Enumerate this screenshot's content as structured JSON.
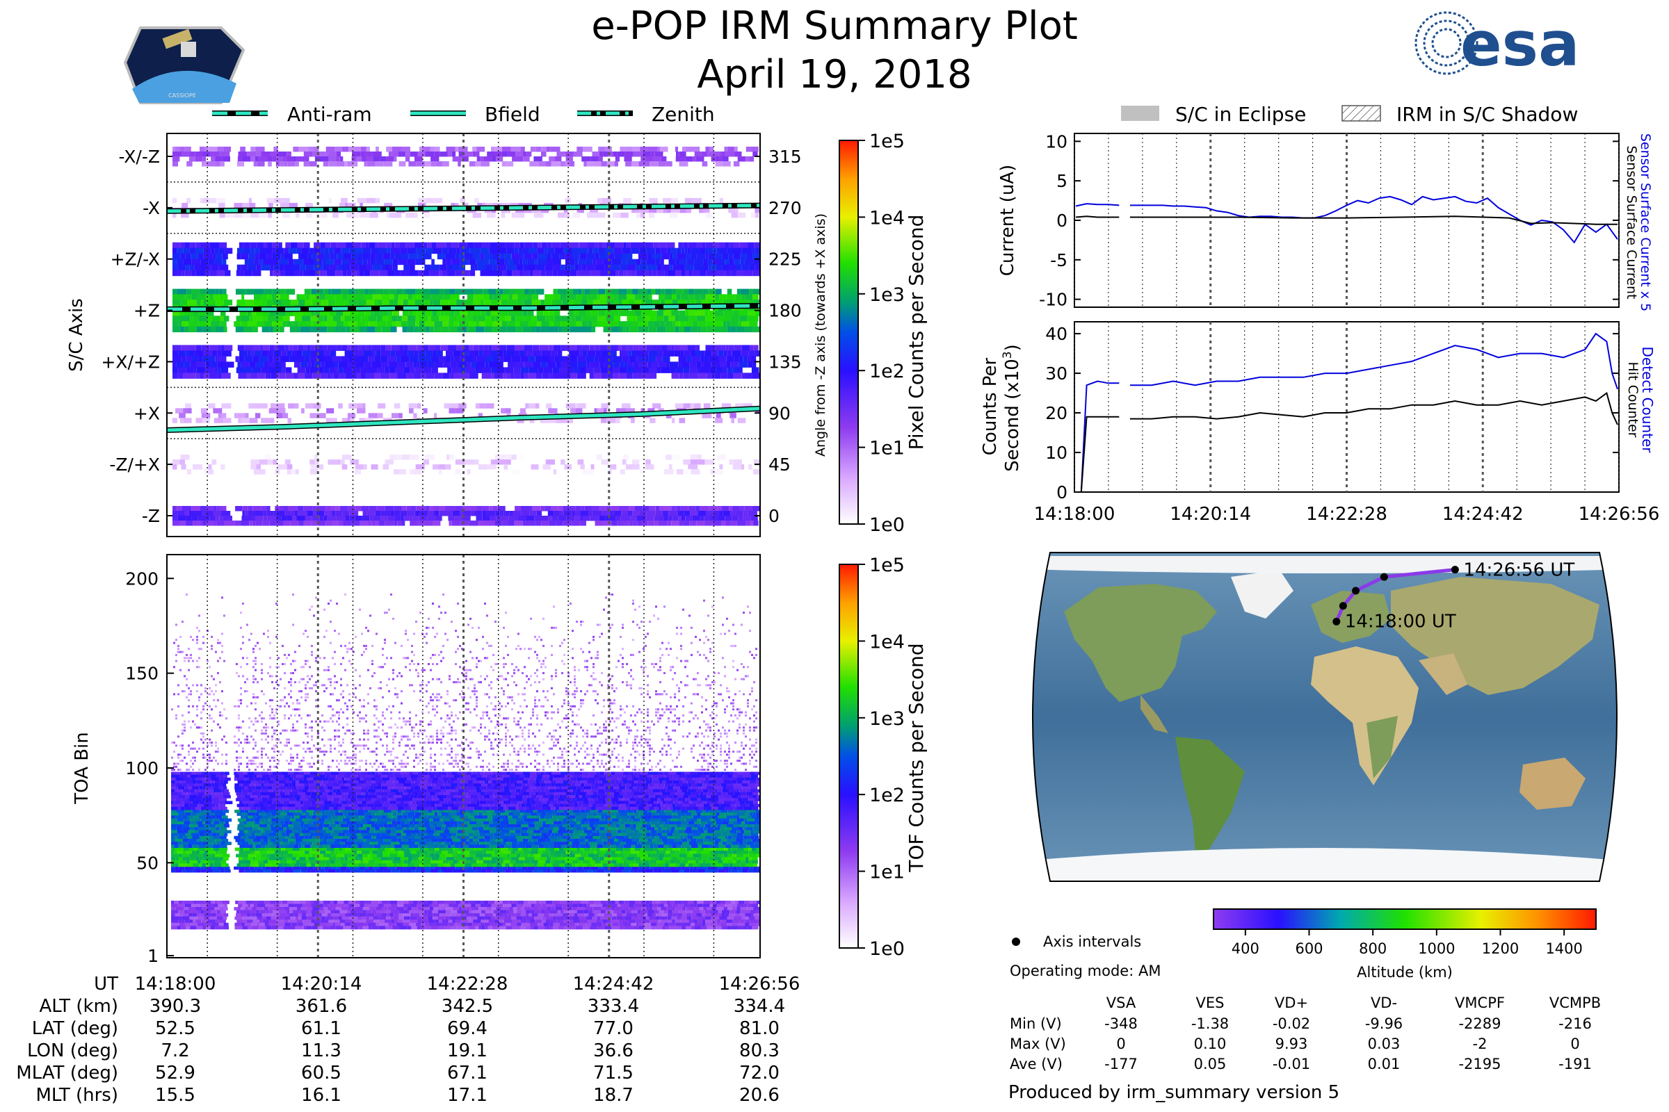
{
  "header": {
    "title": "e-POP IRM Summary Plot",
    "date": "April 19, 2018",
    "logo_left_text": "CASSIOPE",
    "logo_right_text": "esa"
  },
  "legend_top_left": [
    "Anti-ram",
    "Bfield",
    "Zenith"
  ],
  "legend_top_right": [
    "S/C in Eclipse",
    "IRM in S/C Shadow"
  ],
  "colors": {
    "accent_teal": "#2ee6c0",
    "series_blue": "#0000dd",
    "series_black": "#000000",
    "track_purple": "#8a3ae8"
  },
  "chart_data": [
    {
      "id": "axis_heatmap",
      "type": "heatmap",
      "ylabel": "S/C Axis",
      "y2label": "Angle from -Z axis (towards +X axis)",
      "y_categories": [
        "-X/-Z",
        "-X",
        "+Z/-X",
        "+Z",
        "+X/+Z",
        "+X",
        "-Z/+X",
        "-Z"
      ],
      "y2_ticks": [
        315,
        270,
        225,
        180,
        135,
        90,
        45,
        0
      ],
      "bands": [
        {
          "angle": 315,
          "level": 1.2
        },
        {
          "angle": 270,
          "level": 0.6
        },
        {
          "angle": 225,
          "level": 2.1
        },
        {
          "angle": 180,
          "level": 3.3
        },
        {
          "angle": 135,
          "level": 2.0
        },
        {
          "angle": 90,
          "level": 0.8
        },
        {
          "angle": 45,
          "level": 0.4
        },
        {
          "angle": 0,
          "level": 1.7
        }
      ],
      "lines": [
        {
          "name": "Zenith",
          "style": "dashdot",
          "angles": [
            267,
            268,
            269,
            270,
            271,
            272
          ]
        },
        {
          "name": "Anti-ram",
          "style": "dashed",
          "angles": [
            181,
            181,
            182,
            182,
            183,
            184
          ]
        },
        {
          "name": "Bfield",
          "style": "solid",
          "angles": [
            75,
            78,
            82,
            86,
            89,
            94
          ]
        }
      ],
      "colorbar": {
        "label": "Pixel Counts per Second",
        "ticks": [
          "1e0",
          "1e1",
          "1e2",
          "1e3",
          "1e4",
          "1e5"
        ]
      }
    },
    {
      "id": "toa_heatmap",
      "type": "heatmap",
      "ylabel": "TOA Bin",
      "y_ticks": [
        "1",
        "50",
        "100",
        "150",
        "200"
      ],
      "ylim": [
        1,
        210
      ],
      "bands": [
        {
          "bin_from": 15,
          "bin_to": 30,
          "level": 1.3
        },
        {
          "bin_from": 45,
          "bin_to": 48,
          "level": 2.2
        },
        {
          "bin_from": 48,
          "bin_to": 58,
          "level": 3.2
        },
        {
          "bin_from": 58,
          "bin_to": 78,
          "level": 2.6
        },
        {
          "bin_from": 78,
          "bin_to": 98,
          "level": 1.8
        },
        {
          "bin_from": 98,
          "bin_to": 200,
          "level": 0.3
        }
      ],
      "colorbar": {
        "label": "TOF Counts per Second",
        "ticks": [
          "1e0",
          "1e1",
          "1e2",
          "1e3",
          "1e4",
          "1e5"
        ]
      }
    },
    {
      "id": "current_plot",
      "type": "line",
      "ylabel": "Current (uA)",
      "y_ticks": [
        "10",
        "5",
        "0",
        "-5",
        "-10"
      ],
      "ylim": [
        -11,
        11
      ],
      "side_labels": [
        "Sensor Surface Current x 5",
        "Sensor Surface Current"
      ],
      "series": [
        {
          "name": "Sensor Surface Current x 5",
          "color": "#0000dd",
          "x": [
            0,
            2,
            4,
            6,
            8,
            8.5,
            9.5,
            10,
            12,
            14,
            16,
            18,
            20,
            22,
            24,
            26,
            28,
            30,
            32,
            34,
            36,
            38,
            40,
            42,
            44,
            46,
            48,
            50,
            52,
            54,
            56,
            58,
            60,
            62,
            64,
            66,
            68,
            70,
            72,
            74,
            76,
            78,
            80,
            82,
            84,
            86,
            88,
            90,
            92,
            94,
            96,
            98,
            100
          ],
          "y": [
            1.8,
            2.1,
            2.0,
            2.0,
            1.9,
            null,
            null,
            1.9,
            1.9,
            1.9,
            1.9,
            1.8,
            1.8,
            1.7,
            1.6,
            1.2,
            1.0,
            0.6,
            0.4,
            0.5,
            0.5,
            0.4,
            0.4,
            0.3,
            0.3,
            0.6,
            1.2,
            1.9,
            2.5,
            2.2,
            2.8,
            3.0,
            2.6,
            2.0,
            3.0,
            2.6,
            2.8,
            3.0,
            2.4,
            2.2,
            2.8,
            1.6,
            0.8,
            0.0,
            -0.6,
            0.0,
            -0.2,
            -1.2,
            -2.8,
            -0.5,
            -1.5,
            -0.5,
            -2.4
          ]
        },
        {
          "name": "Sensor Surface Current",
          "color": "#000000",
          "x": [
            0,
            2,
            4,
            6,
            8,
            8.5,
            9.5,
            10,
            20,
            30,
            40,
            50,
            60,
            70,
            80,
            84,
            88,
            92,
            96,
            100
          ],
          "y": [
            0.4,
            0.5,
            0.4,
            0.4,
            0.4,
            null,
            null,
            0.4,
            0.4,
            0.4,
            0.3,
            0.3,
            0.4,
            0.5,
            0.3,
            -0.4,
            -0.3,
            -0.4,
            -0.5,
            -0.5
          ]
        }
      ]
    },
    {
      "id": "counts_plot",
      "type": "line",
      "ylabel": "Counts Per",
      "ylabel2": "Second (x10",
      "ylabel2_sup": "3",
      "y_ticks": [
        "40",
        "30",
        "20",
        "10",
        "0"
      ],
      "ylim": [
        0,
        43
      ],
      "x_ticks": [
        "14:18:00",
        "14:20:14",
        "14:22:28",
        "14:24:42",
        "14:26:56"
      ],
      "side_labels": [
        "Detect Counter",
        "Hit Counter"
      ],
      "series": [
        {
          "name": "Detect Counter",
          "color": "#0000dd",
          "x": [
            0,
            1,
            2,
            4,
            6,
            8,
            8.5,
            9.5,
            10,
            14,
            18,
            22,
            26,
            30,
            34,
            38,
            42,
            46,
            50,
            54,
            58,
            62,
            66,
            70,
            74,
            78,
            82,
            86,
            90,
            94,
            96,
            98,
            99,
            100
          ],
          "y": [
            0,
            0,
            27,
            28,
            27.5,
            27.5,
            null,
            null,
            27,
            27,
            28,
            27,
            28,
            28,
            29,
            29,
            29,
            30,
            30,
            31,
            32,
            33,
            35,
            37,
            36,
            34,
            35,
            35,
            34,
            36,
            40,
            38,
            30,
            26
          ]
        },
        {
          "name": "Hit Counter",
          "color": "#000000",
          "x": [
            0,
            1,
            2,
            4,
            6,
            8,
            8.5,
            9.5,
            10,
            14,
            18,
            22,
            26,
            30,
            34,
            38,
            42,
            46,
            50,
            54,
            58,
            62,
            66,
            70,
            74,
            78,
            82,
            86,
            90,
            94,
            96,
            98,
            99,
            100
          ],
          "y": [
            0,
            0,
            19,
            19,
            19,
            19,
            null,
            null,
            18.5,
            18.5,
            19,
            19,
            18.5,
            19,
            20,
            19.5,
            19,
            20,
            20,
            21,
            21,
            22,
            22,
            23,
            22,
            22,
            23,
            22,
            23,
            24,
            23,
            25,
            20,
            17
          ]
        }
      ]
    },
    {
      "id": "ground_track",
      "type": "scatter",
      "labels": [
        "14:26:56 UT",
        "14:18:00 UT"
      ],
      "points_lonlat": [
        [
          7.2,
          52.5
        ],
        [
          11.3,
          61.1
        ],
        [
          19.1,
          69.4
        ],
        [
          36.6,
          77.0
        ],
        [
          80.3,
          81.0
        ]
      ],
      "altitude_colorbar": {
        "label": "Altitude (km)",
        "ticks": [
          "400",
          "600",
          "800",
          "1000",
          "1200",
          "1400"
        ],
        "range": [
          300,
          1500
        ]
      }
    }
  ],
  "time_ticks": [
    "14:18:00",
    "14:20:14",
    "14:22:28",
    "14:24:42",
    "14:26:56"
  ],
  "ephemeris": {
    "rows": [
      {
        "label": "UT",
        "values": [
          "14:18:00",
          "14:20:14",
          "14:22:28",
          "14:24:42",
          "14:26:56"
        ]
      },
      {
        "label": "ALT (km)",
        "values": [
          "390.3",
          "361.6",
          "342.5",
          "333.4",
          "334.4"
        ]
      },
      {
        "label": "LAT (deg)",
        "values": [
          "52.5",
          "61.1",
          "69.4",
          "77.0",
          "81.0"
        ]
      },
      {
        "label": "LON (deg)",
        "values": [
          "7.2",
          "11.3",
          "19.1",
          "36.6",
          "80.3"
        ]
      },
      {
        "label": "MLAT (deg)",
        "values": [
          "52.9",
          "60.5",
          "67.1",
          "71.5",
          "72.0"
        ]
      },
      {
        "label": "MLT (hrs)",
        "values": [
          "15.5",
          "16.1",
          "17.1",
          "18.7",
          "20.6"
        ]
      }
    ]
  },
  "info": {
    "axis_intervals": "Axis intervals",
    "operating_mode": "Operating mode: AM",
    "produced_by": "Produced by irm_summary version 5"
  },
  "voltage_table": {
    "headers": [
      "VSA",
      "VES",
      "VD+",
      "VD-",
      "VMCPF",
      "VCMPB"
    ],
    "rows": [
      {
        "label": "Min (V)",
        "values": [
          "-348",
          "-1.38",
          "-0.02",
          "-9.96",
          "-2289",
          "-216"
        ]
      },
      {
        "label": "Max (V)",
        "values": [
          "0",
          "0.10",
          "9.93",
          "0.03",
          "-2",
          "0"
        ]
      },
      {
        "label": "Ave (V)",
        "values": [
          "-177",
          "0.05",
          "-0.01",
          "0.01",
          "-2195",
          "-191"
        ]
      }
    ]
  }
}
